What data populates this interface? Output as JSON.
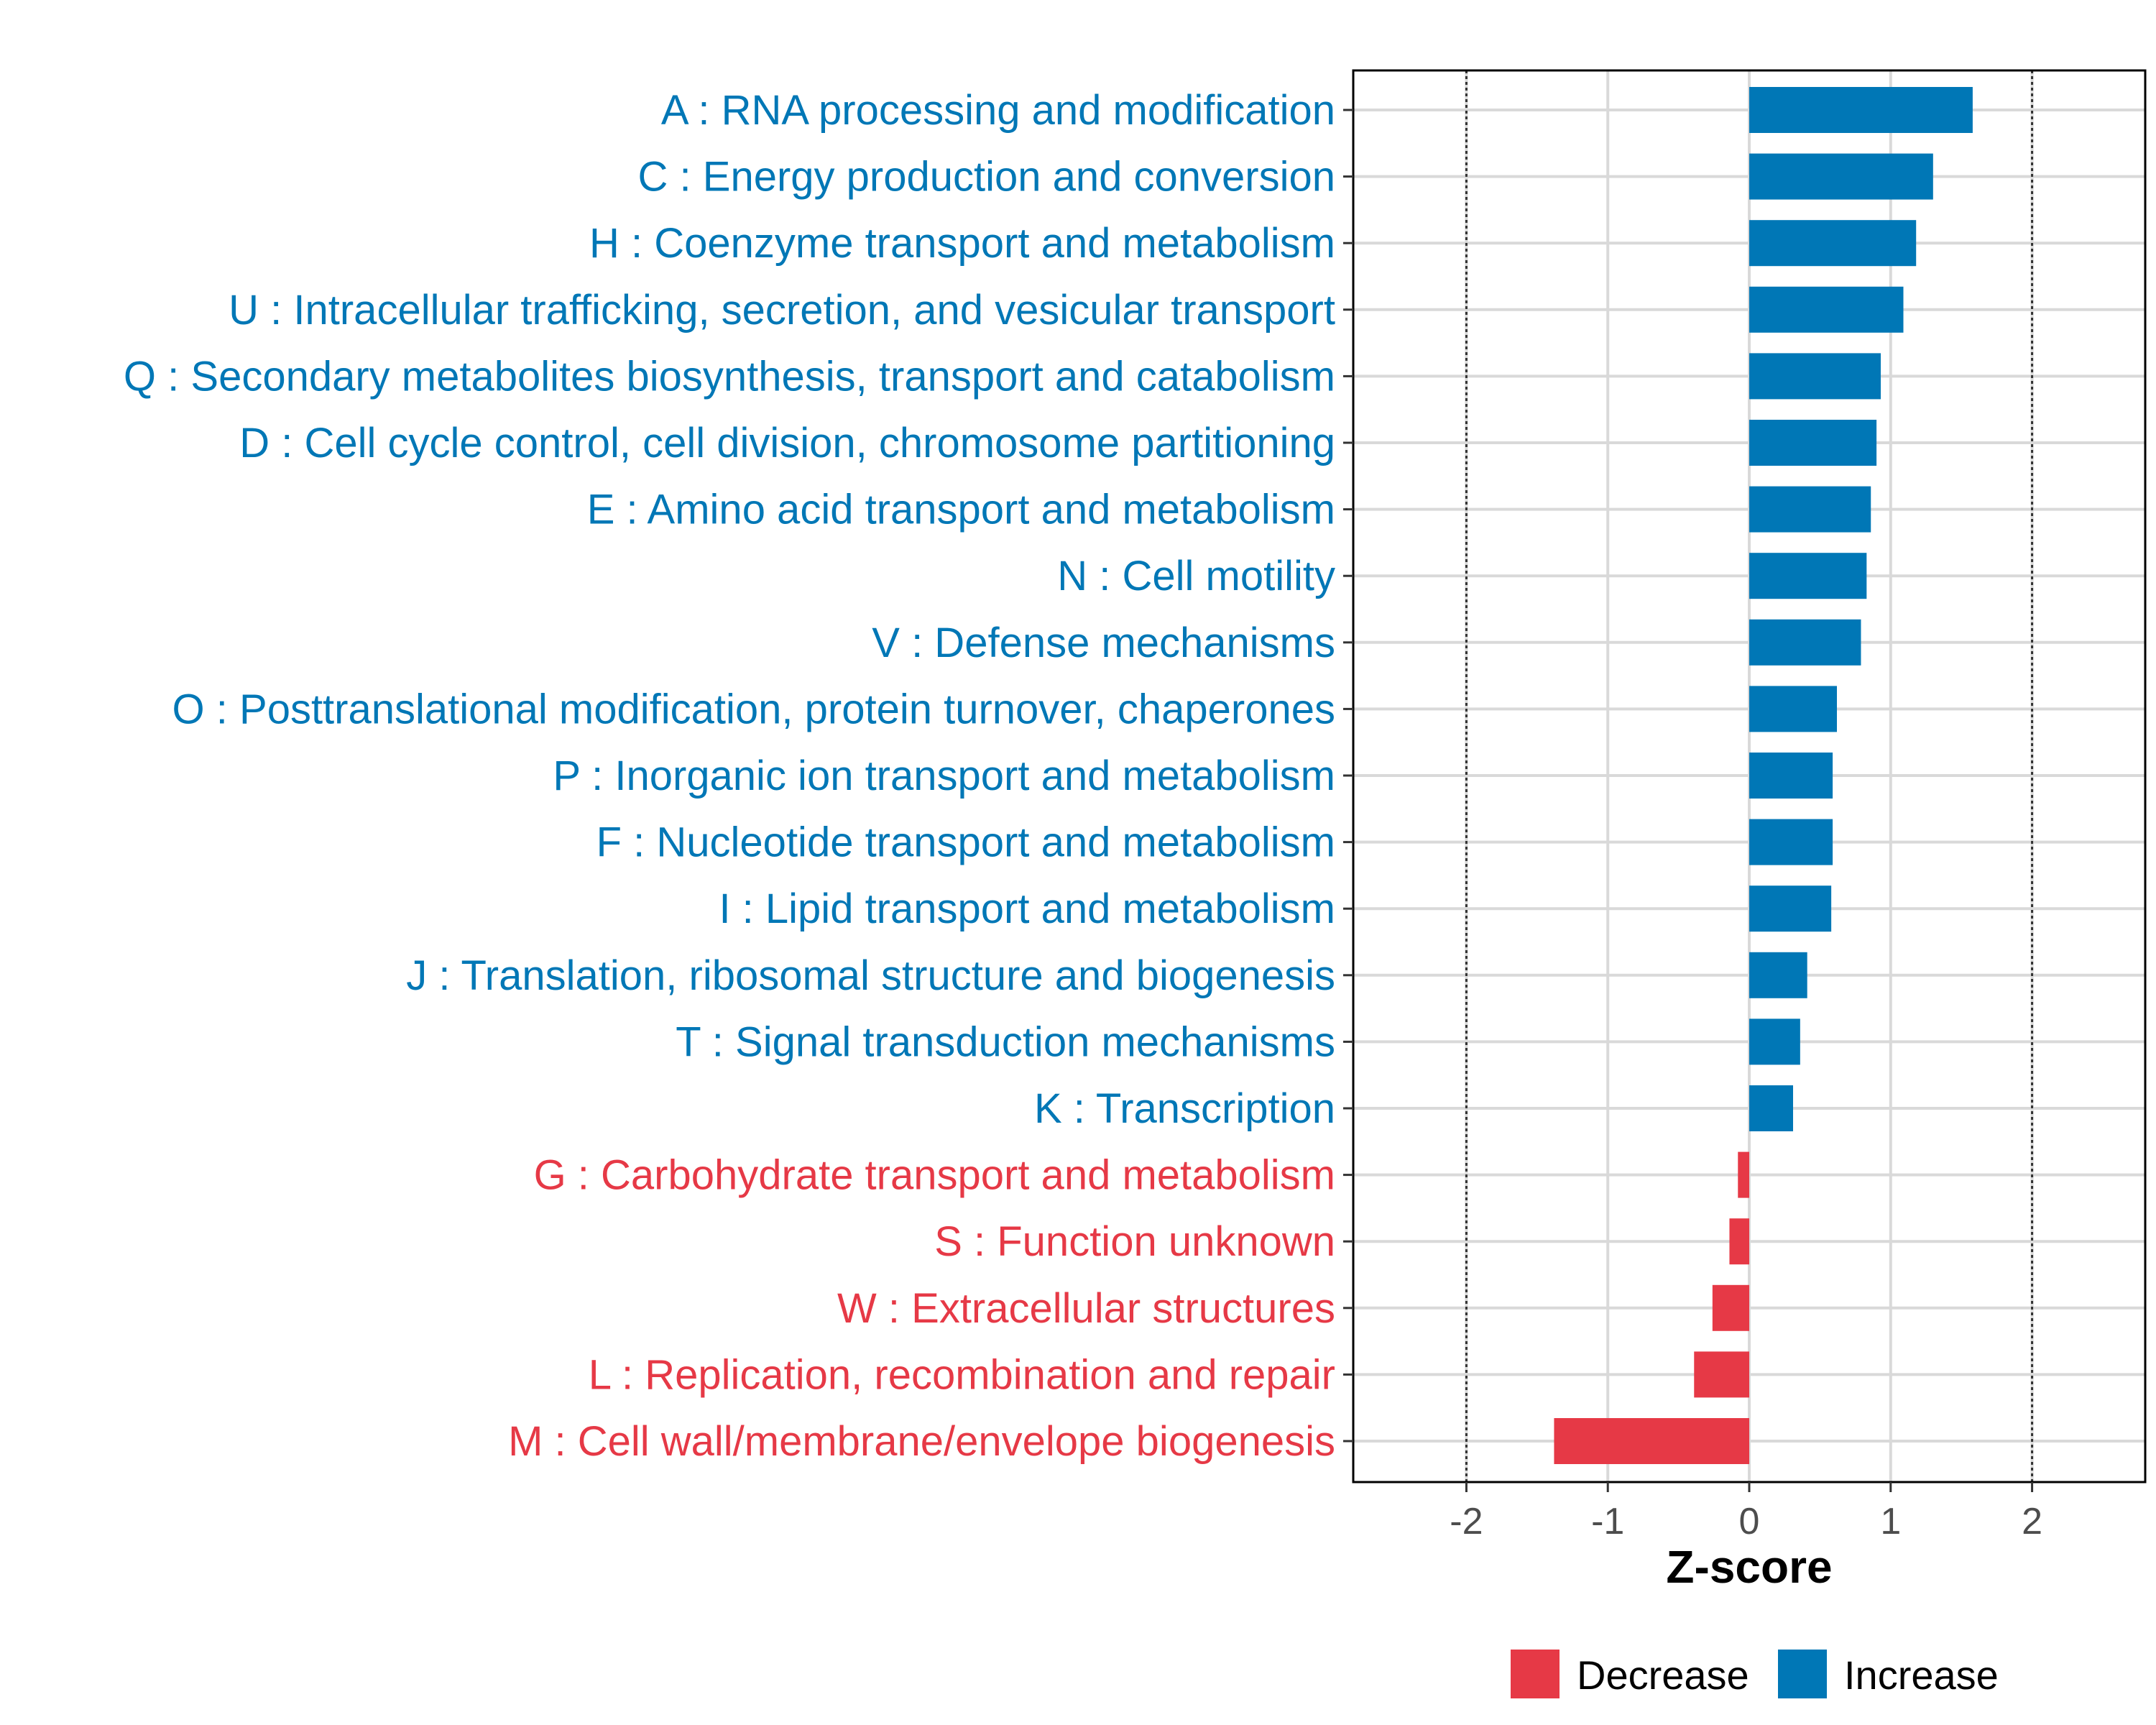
{
  "chart_data": {
    "type": "bar",
    "orientation": "horizontal",
    "title": "",
    "xlabel": "Z-score",
    "ylabel": "",
    "xlim": [
      -2.8,
      2.8
    ],
    "xticks": [
      "-2",
      "-1",
      "0",
      "1",
      "2"
    ],
    "xtick_values": [
      -2,
      -1,
      0,
      1,
      2
    ],
    "reference_lines": [
      -2,
      2
    ],
    "grid": true,
    "legend_position": "bottom",
    "colors": {
      "Decrease": "#E63946",
      "Increase": "#0077B6"
    },
    "legend": [
      {
        "label": "Decrease",
        "color": "#E63946"
      },
      {
        "label": "Increase",
        "color": "#0077B6"
      }
    ],
    "categories": [
      "A : RNA processing and modification",
      "C : Energy production and conversion",
      "H : Coenzyme transport and metabolism",
      "U : Intracellular trafficking, secretion, and vesicular transport",
      "Q : Secondary metabolites biosynthesis, transport and catabolism",
      "D : Cell cycle control, cell division, chromosome partitioning",
      "E : Amino acid transport and metabolism",
      "N : Cell motility",
      "V : Defense mechanisms",
      "O : Posttranslational modification, protein turnover, chaperones",
      "P : Inorganic ion transport and metabolism",
      "F : Nucleotide transport and metabolism",
      "I : Lipid transport and metabolism",
      "J : Translation, ribosomal structure and biogenesis",
      "T : Signal transduction mechanisms",
      "K : Transcription",
      "G : Carbohydrate transport and metabolism",
      "S : Function unknown",
      "W : Extracellular structures",
      "L : Replication, recombination and repair",
      "M : Cell wall/membrane/envelope biogenesis"
    ],
    "values": [
      1.58,
      1.3,
      1.18,
      1.09,
      0.93,
      0.9,
      0.86,
      0.83,
      0.79,
      0.62,
      0.59,
      0.59,
      0.58,
      0.41,
      0.36,
      0.31,
      -0.08,
      -0.14,
      -0.26,
      -0.39,
      -1.38
    ],
    "groups": [
      "Increase",
      "Increase",
      "Increase",
      "Increase",
      "Increase",
      "Increase",
      "Increase",
      "Increase",
      "Increase",
      "Increase",
      "Increase",
      "Increase",
      "Increase",
      "Increase",
      "Increase",
      "Increase",
      "Decrease",
      "Decrease",
      "Decrease",
      "Decrease",
      "Decrease"
    ]
  }
}
